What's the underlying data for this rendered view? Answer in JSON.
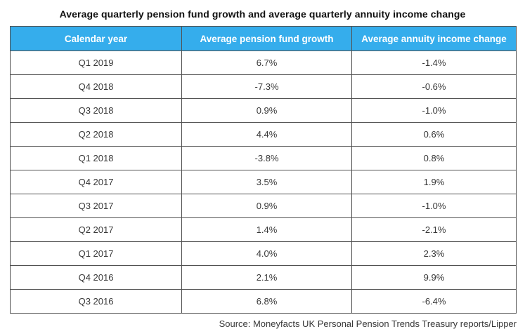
{
  "title": "Average quarterly pension fund growth and average quarterly annuity income change",
  "source": "Source: Moneyfacts UK Personal Pension Trends Treasury reports/Lipper",
  "colors": {
    "header_bg": "#35ADEC",
    "header_text": "#FFFFFF",
    "border": "#515151",
    "body_text": "#383838",
    "title_text": "#101010",
    "page_bg": "#FFFFFF"
  },
  "chart_data": {
    "type": "table",
    "title": "Average quarterly pension fund growth and average quarterly annuity income change",
    "columns": [
      "Calendar year",
      "Average pension fund growth",
      "Average annuity income change"
    ],
    "rows": [
      [
        "Q1 2019",
        "6.7%",
        "-1.4%"
      ],
      [
        "Q4 2018",
        "-7.3%",
        "-0.6%"
      ],
      [
        "Q3 2018",
        "0.9%",
        "-1.0%"
      ],
      [
        "Q2 2018",
        "4.4%",
        "0.6%"
      ],
      [
        "Q1 2018",
        "-3.8%",
        "0.8%"
      ],
      [
        "Q4 2017",
        "3.5%",
        "1.9%"
      ],
      [
        "Q3 2017",
        "0.9%",
        "-1.0%"
      ],
      [
        "Q2 2017",
        "1.4%",
        "-2.1%"
      ],
      [
        "Q1 2017",
        "4.0%",
        "2.3%"
      ],
      [
        "Q4 2016",
        "2.1%",
        "9.9%"
      ],
      [
        "Q3 2016",
        "6.8%",
        "-6.4%"
      ]
    ],
    "categories": [
      "Q1 2019",
      "Q4 2018",
      "Q3 2018",
      "Q2 2018",
      "Q1 2018",
      "Q4 2017",
      "Q3 2017",
      "Q2 2017",
      "Q1 2017",
      "Q4 2016",
      "Q3 2016"
    ],
    "series": [
      {
        "name": "Average pension fund growth",
        "values": [
          6.7,
          -7.3,
          0.9,
          4.4,
          -3.8,
          3.5,
          0.9,
          1.4,
          4.0,
          2.1,
          6.8
        ]
      },
      {
        "name": "Average annuity income change",
        "values": [
          -1.4,
          -0.6,
          -1.0,
          0.6,
          0.8,
          1.9,
          -1.0,
          -2.1,
          2.3,
          9.9,
          -6.4
        ]
      }
    ],
    "source": "Source: Moneyfacts UK Personal Pension Trends Treasury reports/Lipper"
  }
}
